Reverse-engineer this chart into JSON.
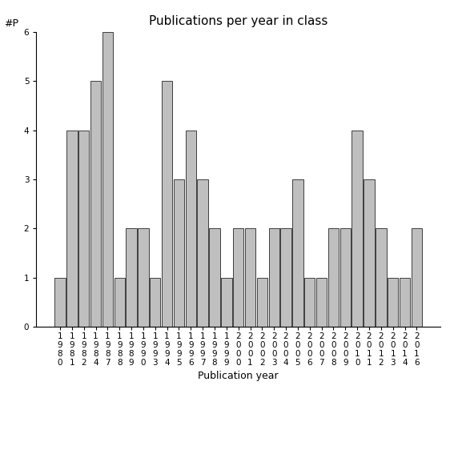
{
  "years": [
    "1980",
    "1981",
    "1982",
    "1984",
    "1987",
    "1988",
    "1989",
    "1990",
    "1993",
    "1994",
    "1995",
    "1996",
    "1997",
    "1998",
    "1999",
    "2000",
    "2001",
    "2002",
    "2003",
    "2004",
    "2005",
    "2006",
    "2007",
    "2008",
    "2009",
    "2010",
    "2011",
    "2012",
    "2013",
    "2014",
    "2016"
  ],
  "values": [
    1,
    4,
    4,
    5,
    6,
    1,
    2,
    2,
    1,
    5,
    3,
    4,
    3,
    2,
    1,
    2,
    2,
    1,
    2,
    2,
    3,
    1,
    1,
    2,
    2,
    4,
    3,
    2,
    1,
    1,
    2
  ],
  "bar_color": "#bfbfbf",
  "edge_color": "#000000",
  "title": "Publications per year in class",
  "xlabel": "Publication year",
  "ylabel": "#P",
  "ylim": [
    0,
    6
  ],
  "yticks": [
    0,
    1,
    2,
    3,
    4,
    5,
    6
  ],
  "bg_color": "#ffffff",
  "title_fontsize": 11,
  "label_fontsize": 9,
  "tick_fontsize": 7.5
}
